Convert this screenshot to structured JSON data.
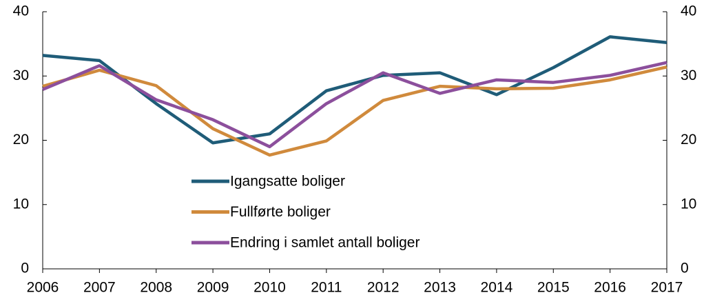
{
  "chart_data": {
    "type": "line",
    "categories": [
      "2006",
      "2007",
      "2008",
      "2009",
      "2010",
      "2011",
      "2012",
      "2013",
      "2014",
      "2015",
      "2016",
      "2017"
    ],
    "series": [
      {
        "name": "Igangsatte boliger",
        "color": "#1f5c78",
        "values": [
          33.2,
          32.4,
          25.7,
          19.6,
          21.0,
          27.7,
          30.1,
          30.5,
          27.1,
          31.3,
          36.1,
          35.2
        ]
      },
      {
        "name": "Fullførte boliger",
        "color": "#d08a3c",
        "values": [
          28.4,
          30.9,
          28.5,
          21.8,
          17.7,
          19.9,
          26.2,
          28.4,
          28.0,
          28.1,
          29.4,
          31.4
        ]
      },
      {
        "name": "Endring i samlet antall boliger",
        "color": "#8c4f9c",
        "values": [
          27.9,
          31.6,
          26.3,
          23.2,
          19.0,
          25.7,
          30.5,
          27.3,
          29.4,
          29.0,
          30.1,
          32.1
        ]
      }
    ],
    "ylim": [
      0,
      40
    ],
    "yticks": [
      0,
      10,
      20,
      30,
      40
    ],
    "y2lim": [
      0,
      40
    ],
    "y2ticks": [
      0,
      10,
      20,
      30,
      40
    ],
    "grid": false
  }
}
